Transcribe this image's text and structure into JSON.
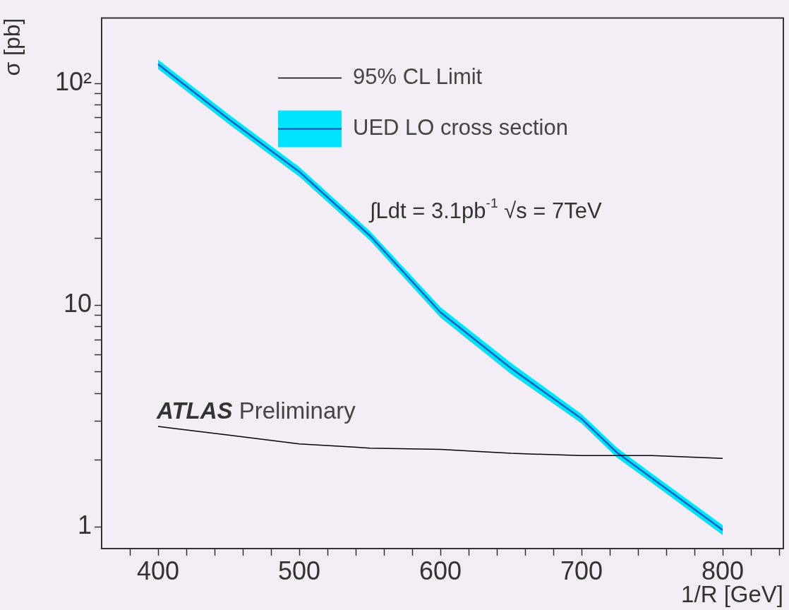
{
  "chart_data": {
    "type": "line",
    "xlabel": "1/R [GeV]",
    "ylabel": "σ [pb]",
    "x": [
      400,
      450,
      500,
      550,
      600,
      650,
      700,
      725,
      750,
      800
    ],
    "series": [
      {
        "name": "95% CL Limit",
        "color": "#000000",
        "values": [
          2.84,
          2.6,
          2.37,
          2.27,
          2.24,
          2.15,
          2.1,
          2.1,
          2.1,
          2.04
        ]
      },
      {
        "name": "UED LO cross section",
        "color": "#1a5fc0",
        "values": [
          122,
          69,
          40,
          20.6,
          9.3,
          5.2,
          3.08,
          2.17,
          1.66,
          0.97
        ],
        "lower": [
          116,
          65.5,
          38,
          19.6,
          8.8,
          4.9,
          2.93,
          2.06,
          1.58,
          0.92
        ],
        "upper": [
          128,
          72.5,
          42,
          21.6,
          9.8,
          5.5,
          3.23,
          2.28,
          1.74,
          1.02
        ]
      }
    ],
    "xlim": [
      360,
      843
    ],
    "ylim": [
      0.8,
      197
    ],
    "xticks": [
      {
        "value": 380,
        "label": null
      },
      400,
      {
        "value": 420,
        "label": null
      },
      {
        "value": 440,
        "label": null
      },
      {
        "value": 460,
        "label": null
      },
      {
        "value": 480,
        "label": null
      },
      500,
      {
        "value": 520,
        "label": null
      },
      {
        "value": 540,
        "label": null
      },
      {
        "value": 560,
        "label": null
      },
      {
        "value": 580,
        "label": null
      },
      600,
      {
        "value": 620,
        "label": null
      },
      {
        "value": 640,
        "label": null
      },
      {
        "value": 660,
        "label": null
      },
      {
        "value": 680,
        "label": null
      },
      700,
      {
        "value": 720,
        "label": null
      },
      {
        "value": 740,
        "label": null
      },
      {
        "value": 760,
        "label": null
      },
      {
        "value": 780,
        "label": null
      },
      800,
      {
        "value": 820,
        "label": null
      },
      {
        "value": 840,
        "label": null
      }
    ],
    "yticks": [
      1,
      {
        "value": 2,
        "label": null
      },
      {
        "value": 3,
        "label": null
      },
      {
        "value": 4,
        "label": null
      },
      {
        "value": 5,
        "label": null
      },
      {
        "value": 6,
        "label": null
      },
      {
        "value": 7,
        "label": null
      },
      {
        "value": 8,
        "label": null
      },
      {
        "value": 9,
        "label": null
      },
      10,
      {
        "value": 20,
        "label": null
      },
      {
        "value": 30,
        "label": null
      },
      {
        "value": 40,
        "label": null
      },
      {
        "value": 50,
        "label": null
      },
      {
        "value": 60,
        "label": null
      },
      {
        "value": 70,
        "label": null
      },
      {
        "value": 80,
        "label": null
      },
      {
        "value": 90,
        "label": null
      },
      {
        "value": 100,
        "label": "10²"
      }
    ],
    "log": "y",
    "grid": false,
    "legend": "top",
    "marker": "none",
    "line_style": "solid",
    "annotations": [
      "∫Ldt = 3.1pb$^{-1}$ √s = 7TeV",
      "ATLAS Preliminary"
    ]
  }
}
